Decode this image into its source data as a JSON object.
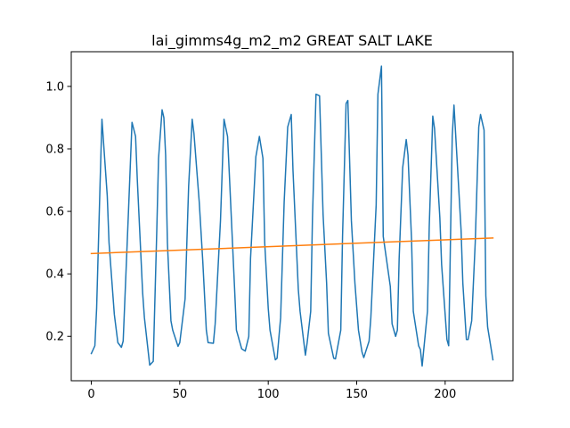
{
  "chart_data": {
    "type": "line",
    "title": "lai_gimms4g_m2_m2 GREAT SALT LAKE",
    "xlabel": "",
    "ylabel": "",
    "xlim": [
      -11.35,
      238.35
    ],
    "ylim": [
      0.058,
      1.111
    ],
    "xticks": [
      0,
      50,
      100,
      150,
      200
    ],
    "yticks": [
      0.2,
      0.4,
      0.6,
      0.8,
      1.0
    ],
    "xtick_labels": [
      "0",
      "50",
      "100",
      "150",
      "200"
    ],
    "ytick_labels": [
      "0.2",
      "0.4",
      "0.6",
      "0.8",
      "1.0"
    ],
    "grid": false,
    "legend": "none",
    "series": [
      {
        "color": "#1f77b4",
        "line_width": 1.5,
        "x": [
          0,
          2,
          3,
          5,
          6,
          9,
          10,
          13,
          15,
          17,
          18,
          21,
          23,
          25,
          26,
          29,
          30,
          33,
          35,
          37,
          38,
          40,
          41,
          42,
          43,
          45,
          46,
          49,
          50,
          53,
          55,
          57,
          58,
          61,
          63,
          65,
          66,
          69,
          70,
          73,
          75,
          77,
          78,
          81,
          82,
          85,
          87,
          89,
          90,
          93,
          95,
          97,
          98,
          100,
          101,
          104,
          105,
          107,
          109,
          111,
          113,
          114,
          117,
          118,
          121,
          122,
          124,
          125,
          127,
          129,
          131,
          133,
          134,
          137,
          138,
          141,
          142,
          144,
          145,
          147,
          149,
          151,
          153,
          154,
          157,
          158,
          161,
          162,
          164,
          165,
          169,
          170,
          172,
          173,
          174,
          176,
          178,
          179,
          181,
          182,
          185,
          186,
          187,
          190,
          191,
          193,
          194,
          197,
          198,
          201,
          202,
          204,
          205,
          209,
          210,
          212,
          213,
          215,
          217,
          219,
          220,
          222,
          223,
          224,
          226,
          227
        ],
        "y": [
          0.145,
          0.17,
          0.29,
          0.7,
          0.895,
          0.65,
          0.5,
          0.27,
          0.18,
          0.165,
          0.185,
          0.6,
          0.885,
          0.84,
          0.7,
          0.34,
          0.26,
          0.108,
          0.12,
          0.54,
          0.77,
          0.925,
          0.9,
          0.78,
          0.5,
          0.25,
          0.22,
          0.168,
          0.18,
          0.32,
          0.68,
          0.895,
          0.85,
          0.63,
          0.44,
          0.22,
          0.18,
          0.178,
          0.24,
          0.57,
          0.895,
          0.84,
          0.72,
          0.35,
          0.22,
          0.16,
          0.153,
          0.2,
          0.45,
          0.775,
          0.84,
          0.77,
          0.5,
          0.29,
          0.22,
          0.125,
          0.13,
          0.26,
          0.63,
          0.87,
          0.91,
          0.73,
          0.35,
          0.28,
          0.14,
          0.18,
          0.28,
          0.58,
          0.975,
          0.97,
          0.59,
          0.37,
          0.21,
          0.13,
          0.128,
          0.22,
          0.52,
          0.945,
          0.955,
          0.57,
          0.37,
          0.22,
          0.15,
          0.132,
          0.185,
          0.26,
          0.62,
          0.975,
          1.065,
          0.52,
          0.36,
          0.24,
          0.2,
          0.22,
          0.45,
          0.74,
          0.83,
          0.78,
          0.51,
          0.28,
          0.17,
          0.158,
          0.105,
          0.28,
          0.55,
          0.905,
          0.865,
          0.58,
          0.43,
          0.19,
          0.17,
          0.84,
          0.94,
          0.54,
          0.37,
          0.19,
          0.19,
          0.25,
          0.5,
          0.87,
          0.91,
          0.86,
          0.33,
          0.23,
          0.16,
          0.125
        ]
      },
      {
        "color": "#ff7f0e",
        "line_width": 1.5,
        "x": [
          0,
          227
        ],
        "y": [
          0.465,
          0.515
        ]
      }
    ]
  }
}
